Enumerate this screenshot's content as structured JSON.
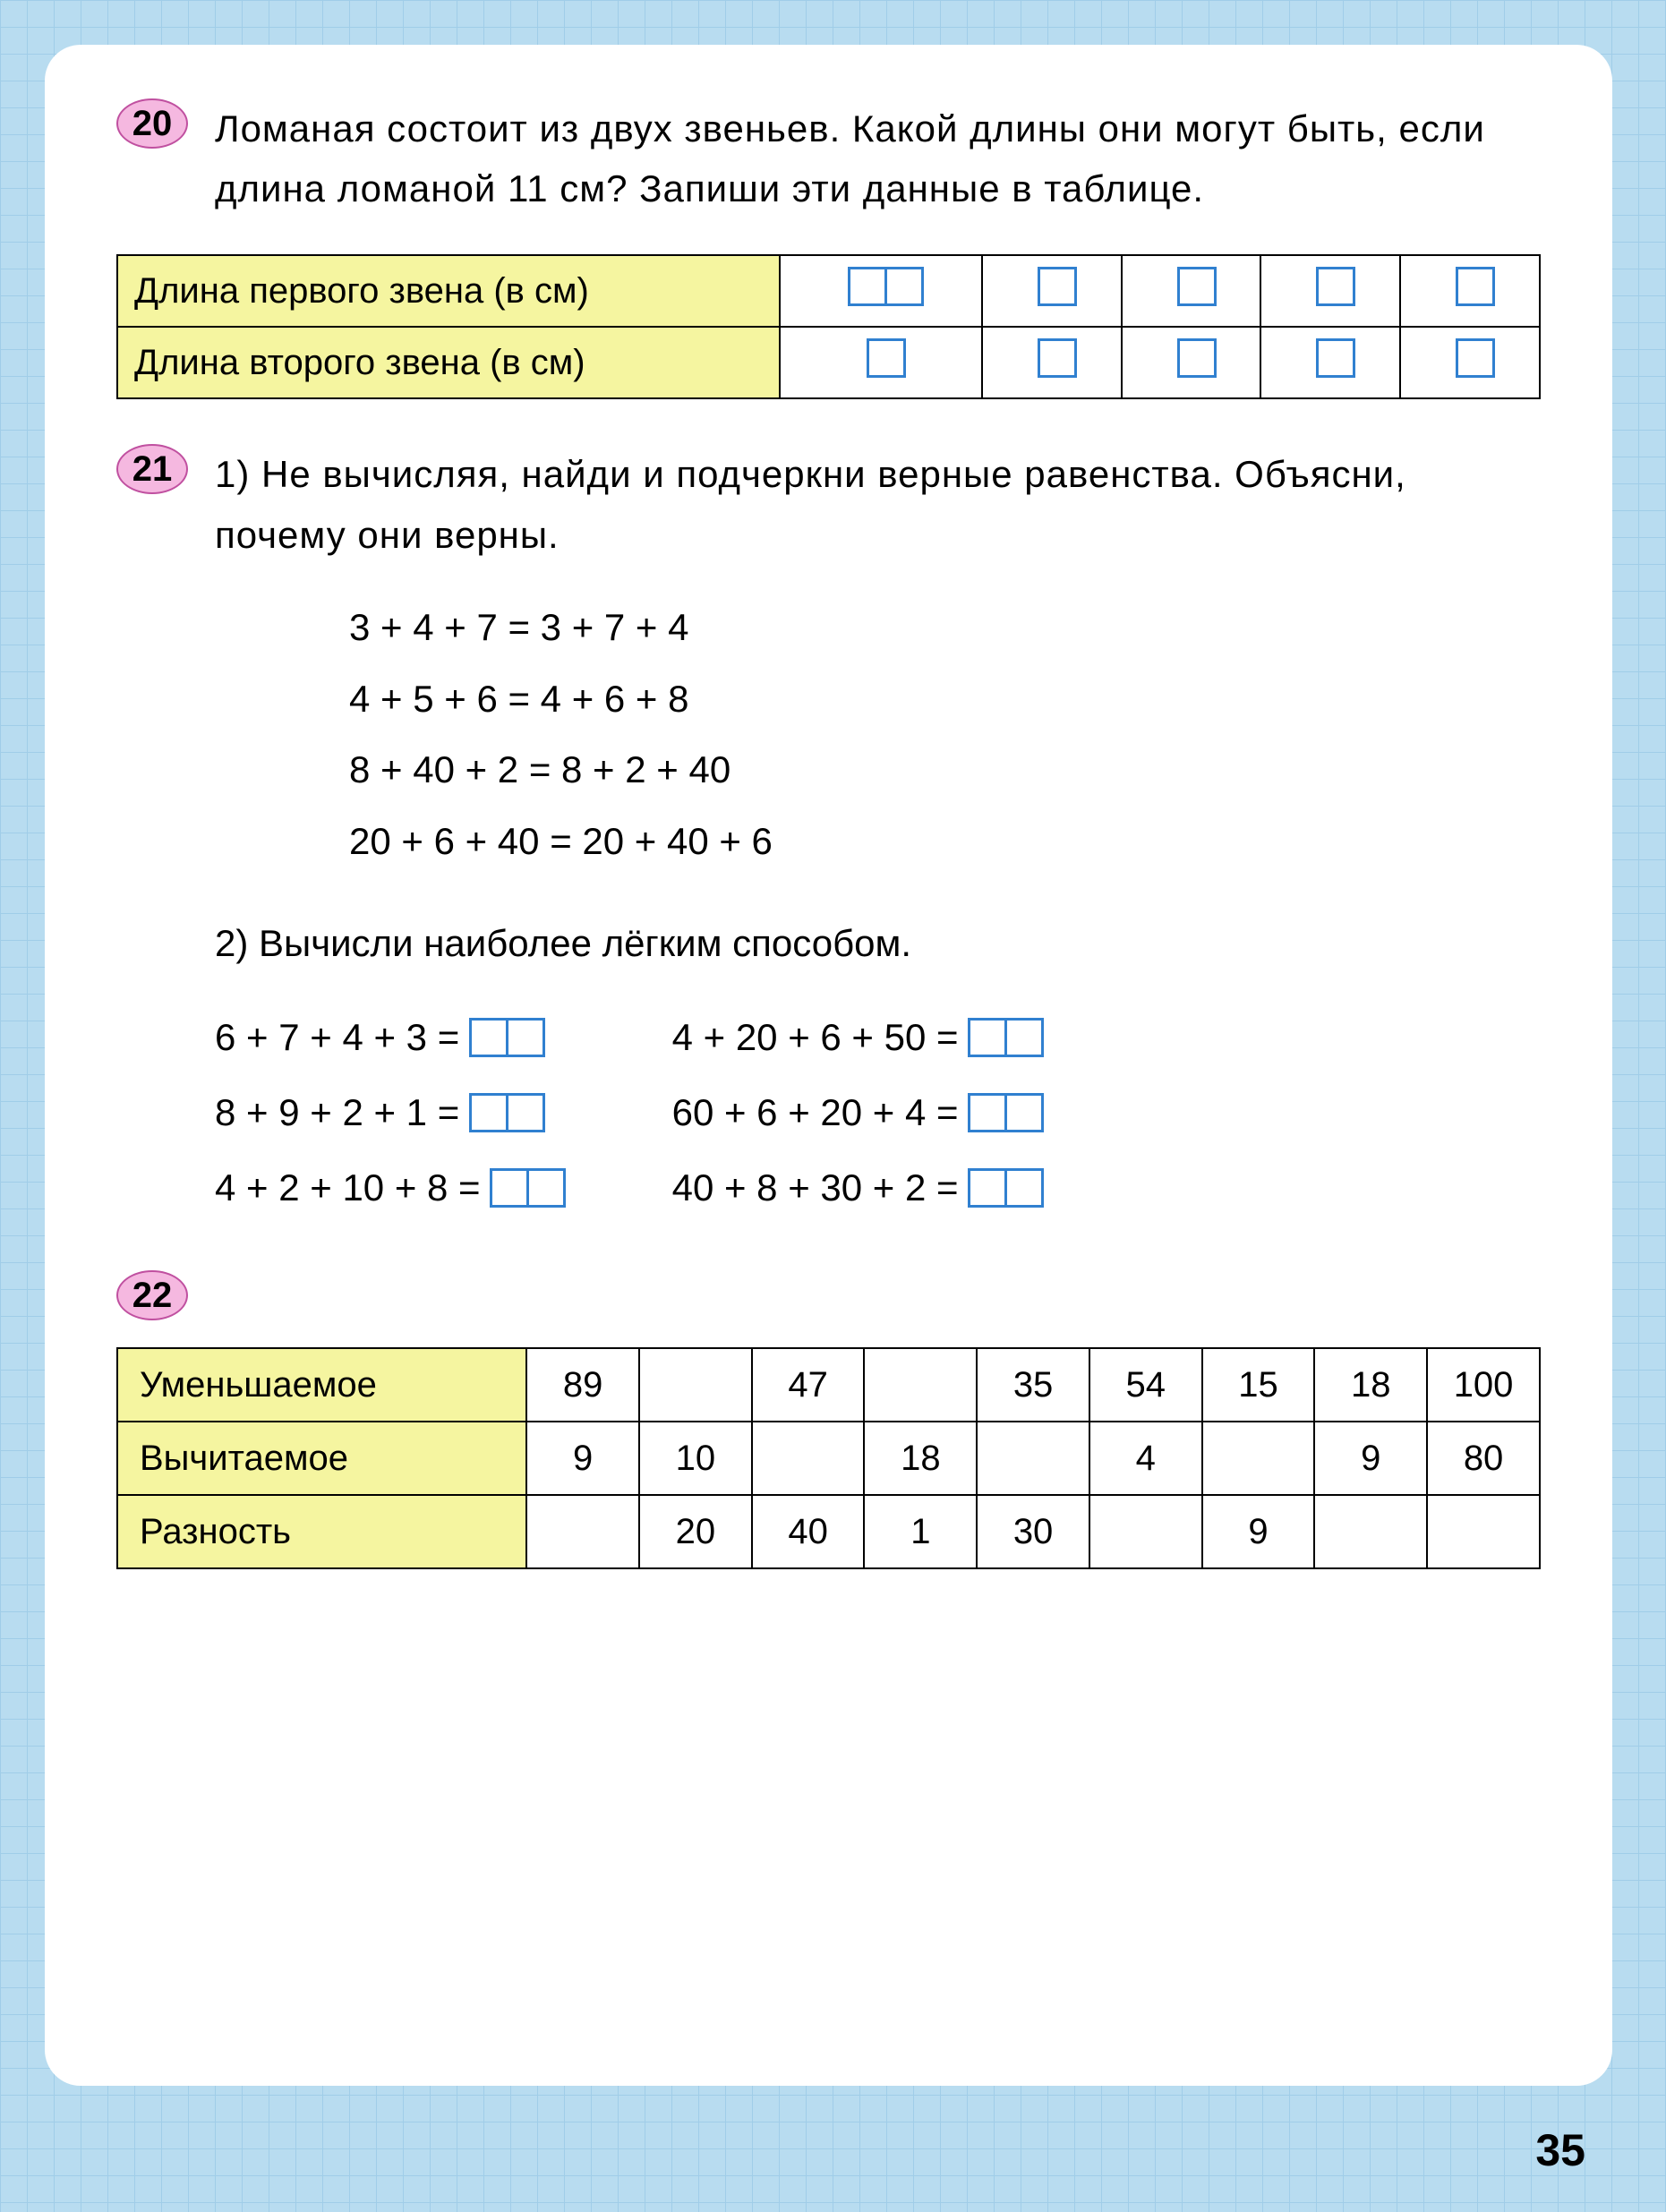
{
  "page_number": "35",
  "colors": {
    "grid_bg": "#b8dcf0",
    "grid_line": "#a0cde8",
    "paper_bg": "#ffffff",
    "badge_fill": "#f5b8e0",
    "badge_border": "#c050a0",
    "table_label_bg": "#f5f5a0",
    "box_border": "#3080d0"
  },
  "ex20": {
    "number": "20",
    "text": "Ломаная состоит из двух звеньев. Какой длины они могут быть, если длина ломаной 11 см? Запиши эти данные в таблице.",
    "table": {
      "row1_label": "Длина первого звена (в см)",
      "row2_label": "Длина второго звена (в см)",
      "cols": 5,
      "row1_boxwidths": [
        2,
        1,
        1,
        1,
        1
      ],
      "row2_boxwidths": [
        1,
        1,
        1,
        1,
        1
      ]
    }
  },
  "ex21": {
    "number": "21",
    "text1": "1) Не вычисляя, найди и подчеркни верные равенства. Объясни, почему они верны.",
    "equations": [
      "3 + 4 + 7 = 3 + 7 + 4",
      "4 + 5 + 6 = 4 + 6 + 8",
      "8 + 40 + 2 = 8 + 2 + 40",
      "20 + 6 + 40 = 20 + 40 + 6"
    ],
    "text2": "2) Вычисли наиболее лёгким способом.",
    "calc_left": [
      "6 + 7 + 4 + 3 =",
      "8 + 9 + 2 + 1 =",
      "4 + 2 + 10 + 8 ="
    ],
    "calc_right": [
      "4 + 20 + 6 + 50 =",
      "60 + 6 + 20 + 4 =",
      "40 + 8 + 30 + 2 ="
    ],
    "answer_box_width": 2
  },
  "ex22": {
    "number": "22",
    "headers": [
      "Уменьшаемое",
      "Вычитаемое",
      "Разность"
    ],
    "columns": 9,
    "rows": [
      [
        "89",
        "",
        "47",
        "",
        "35",
        "54",
        "15",
        "18",
        "100"
      ],
      [
        "9",
        "10",
        "",
        "18",
        "",
        "4",
        "",
        "9",
        "80"
      ],
      [
        "",
        "20",
        "40",
        "1",
        "30",
        "",
        "9",
        "",
        ""
      ]
    ]
  }
}
